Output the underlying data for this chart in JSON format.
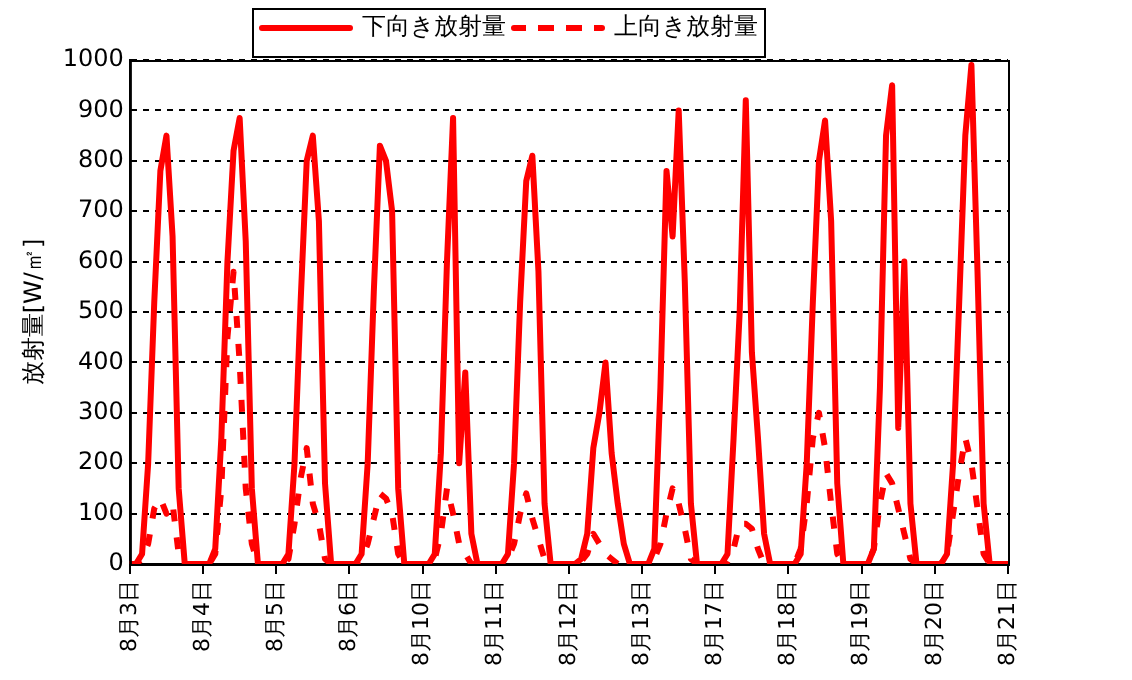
{
  "chart_data": {
    "type": "line",
    "ylabel": "放射量[W/㎡]",
    "categories": [
      "8月3日",
      null,
      null,
      null,
      null,
      null,
      null,
      null,
      null,
      null,
      null,
      null,
      "8月4日",
      null,
      null,
      null,
      null,
      null,
      null,
      null,
      null,
      null,
      null,
      null,
      "8月5日",
      null,
      null,
      null,
      null,
      null,
      null,
      null,
      null,
      null,
      null,
      null,
      "8月6日",
      null,
      null,
      null,
      null,
      null,
      null,
      null,
      null,
      null,
      null,
      null,
      "8月10日",
      null,
      null,
      null,
      null,
      null,
      null,
      null,
      null,
      null,
      null,
      null,
      "8月11日",
      null,
      null,
      null,
      null,
      null,
      null,
      null,
      null,
      null,
      null,
      null,
      "8月12日",
      null,
      null,
      null,
      null,
      null,
      null,
      null,
      null,
      null,
      null,
      null,
      "8月13日",
      null,
      null,
      null,
      null,
      null,
      null,
      null,
      null,
      null,
      null,
      null,
      "8月17日",
      null,
      null,
      null,
      null,
      null,
      null,
      null,
      null,
      null,
      null,
      null,
      "8月18日",
      null,
      null,
      null,
      null,
      null,
      null,
      null,
      null,
      null,
      null,
      null,
      "8月19日",
      null,
      null,
      null,
      null,
      null,
      null,
      null,
      null,
      null,
      null,
      null,
      "8月20日",
      null,
      null,
      null,
      null,
      null,
      null,
      null,
      null,
      null,
      null,
      null,
      "8月21日"
    ],
    "series": [
      {
        "name": "下向き放射量",
        "color": "#ff0000",
        "line_style": "solid",
        "values": [
          0,
          0,
          20,
          200,
          520,
          780,
          850,
          650,
          150,
          0,
          0,
          0,
          0,
          0,
          30,
          250,
          600,
          820,
          885,
          640,
          150,
          0,
          0,
          0,
          0,
          0,
          20,
          200,
          520,
          800,
          850,
          680,
          160,
          0,
          0,
          0,
          0,
          0,
          20,
          200,
          540,
          830,
          800,
          700,
          150,
          0,
          0,
          0,
          0,
          0,
          20,
          220,
          600,
          885,
          200,
          380,
          60,
          0,
          0,
          0,
          0,
          0,
          20,
          200,
          520,
          760,
          810,
          580,
          120,
          0,
          0,
          0,
          0,
          0,
          10,
          60,
          230,
          300,
          400,
          220,
          120,
          40,
          0,
          0,
          0,
          0,
          30,
          350,
          780,
          650,
          900,
          560,
          120,
          0,
          0,
          0,
          0,
          0,
          20,
          250,
          500,
          920,
          420,
          250,
          60,
          0,
          0,
          0,
          0,
          0,
          20,
          200,
          520,
          800,
          880,
          680,
          160,
          0,
          0,
          0,
          0,
          0,
          30,
          350,
          850,
          950,
          270,
          600,
          120,
          0,
          0,
          0,
          0,
          0,
          20,
          200,
          520,
          850,
          990,
          580,
          120,
          0,
          0,
          0,
          0
        ]
      },
      {
        "name": "上向き放射量",
        "color": "#ff0000",
        "line_style": "dashed",
        "values": [
          0,
          0,
          10,
          40,
          110,
          130,
          100,
          120,
          20,
          0,
          0,
          0,
          0,
          0,
          20,
          150,
          450,
          580,
          400,
          150,
          40,
          0,
          0,
          0,
          0,
          0,
          10,
          80,
          170,
          230,
          120,
          80,
          10,
          0,
          0,
          0,
          0,
          0,
          10,
          40,
          90,
          140,
          130,
          100,
          20,
          0,
          0,
          0,
          0,
          0,
          10,
          60,
          150,
          100,
          40,
          20,
          0,
          0,
          0,
          0,
          0,
          0,
          10,
          40,
          100,
          140,
          90,
          50,
          10,
          0,
          0,
          0,
          0,
          0,
          5,
          20,
          60,
          40,
          20,
          10,
          0,
          0,
          0,
          0,
          0,
          0,
          10,
          40,
          100,
          150,
          120,
          70,
          10,
          0,
          0,
          0,
          0,
          0,
          5,
          30,
          80,
          80,
          70,
          30,
          0,
          0,
          0,
          0,
          0,
          0,
          30,
          120,
          250,
          300,
          230,
          120,
          20,
          0,
          0,
          0,
          0,
          0,
          30,
          120,
          180,
          160,
          110,
          60,
          10,
          0,
          0,
          0,
          0,
          0,
          20,
          100,
          180,
          250,
          200,
          110,
          20,
          0,
          0,
          0,
          0
        ]
      }
    ],
    "ylim": [
      0,
      1000
    ],
    "yticks": [
      0,
      100,
      200,
      300,
      400,
      500,
      600,
      700,
      800,
      900,
      1000
    ],
    "grid": "y",
    "legend": "top",
    "marker": "none"
  }
}
